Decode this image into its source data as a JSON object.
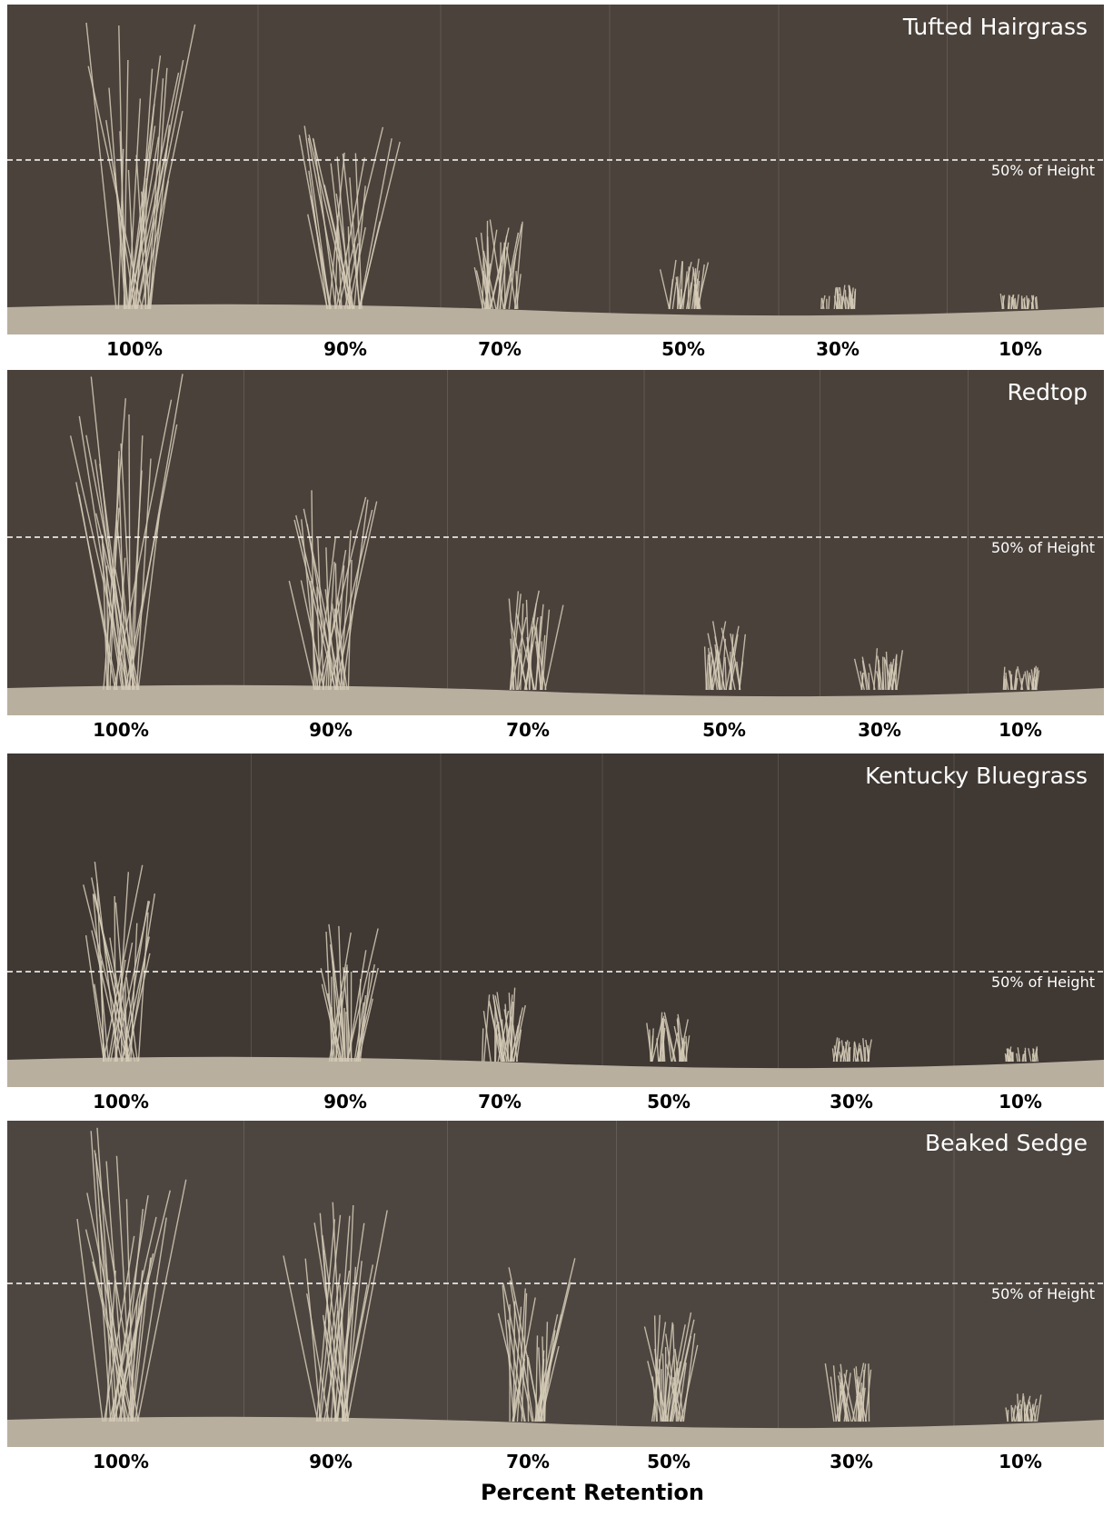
{
  "panels": [
    {
      "title": "Tufted Hairgrass",
      "reference_line": "50% of Height",
      "labels": [
        "100%",
        "90%",
        "70%",
        "50%",
        "30%",
        "10%"
      ]
    },
    {
      "title": "Redtop",
      "reference_line": "50% of Height",
      "labels": [
        "100%",
        "90%",
        "70%",
        "50%",
        "30%",
        "10%"
      ]
    },
    {
      "title": "Kentucky Bluegrass",
      "reference_line": "50% of Height",
      "labels": [
        "100%",
        "90%",
        "70%",
        "50%",
        "30%",
        "10%"
      ]
    },
    {
      "title": "Beaked Sedge",
      "reference_line": "50% of Height",
      "labels": [
        "100%",
        "90%",
        "70%",
        "50%",
        "30%",
        "10%"
      ]
    }
  ],
  "axis_label": "Percent Retention"
}
